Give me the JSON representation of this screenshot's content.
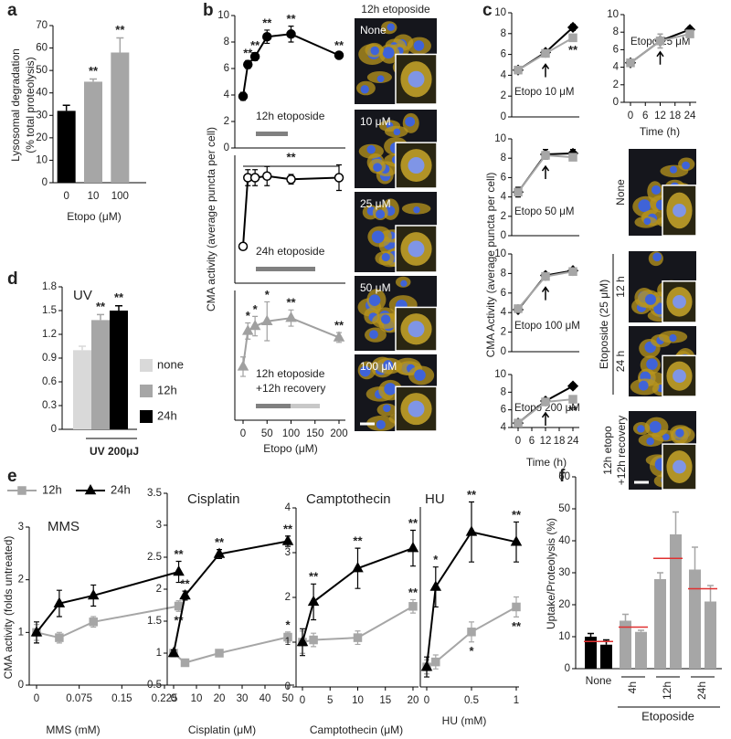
{
  "panel_labels": [
    "a",
    "b",
    "c",
    "d",
    "e",
    "f"
  ],
  "chart_data": [
    {
      "type": "bar",
      "ylabel": [
        "Lysosomal degradation",
        "(% total proteolysis)"
      ],
      "xlabel": "Etopo (μM)",
      "categories": [
        "0",
        "10",
        "100"
      ],
      "values": [
        32,
        45,
        58
      ],
      "errors": [
        2.5,
        1.2,
        6.5
      ],
      "colors": [
        "#000000",
        "#a6a6a6",
        "#a6a6a6"
      ],
      "significance": [
        null,
        "**",
        "**"
      ],
      "ylim": [
        0,
        70
      ],
      "yticks": [
        0,
        10,
        20,
        30,
        40,
        50,
        60,
        70
      ]
    },
    {
      "type": "line",
      "ylabel": "CMA activity (average puncta per cell)",
      "x": [
        0,
        10,
        25,
        50,
        100,
        200
      ],
      "xlim": [
        0,
        200
      ],
      "ylim": [
        0,
        10
      ],
      "yticks": [
        0,
        2,
        4,
        6,
        8,
        10
      ],
      "treatment": [
        "12h etoposide"
      ],
      "treatment_colors": [
        "#808080"
      ],
      "series": [
        {
          "color": "#000000",
          "fill": "#000000",
          "marker": "circle",
          "values": [
            3.9,
            6.3,
            6.9,
            8.4,
            8.6,
            7.0
          ],
          "errors": [
            0.3,
            0.3,
            0.3,
            0.5,
            0.6,
            0.2
          ],
          "significance": [
            null,
            "**",
            "**",
            "**",
            "**",
            "**"
          ]
        }
      ]
    },
    {
      "type": "line",
      "x": [
        0,
        10,
        25,
        50,
        100,
        200
      ],
      "xlim": [
        0,
        200
      ],
      "ylim": [
        2,
        10
      ],
      "treatment": [
        "24h etoposide"
      ],
      "treatment_colors": [
        "#808080"
      ],
      "bracket_label": "**",
      "series": [
        {
          "color": "#000000",
          "fill": "#ffffff",
          "marker": "circle",
          "values": [
            4.3,
            8.6,
            8.6,
            8.7,
            8.5,
            8.6
          ],
          "errors": [
            0.2,
            0.5,
            0.5,
            0.6,
            0.3,
            0.8
          ]
        }
      ]
    },
    {
      "type": "line",
      "xlabel": "Etopo (μM)",
      "x": [
        0,
        10,
        25,
        50,
        100,
        200
      ],
      "xlim": [
        0,
        200
      ],
      "xticks": [
        0,
        50,
        100,
        150,
        200
      ],
      "ylim": [
        2,
        10
      ],
      "treatment": [
        "12h etoposide",
        "+12h recovery"
      ],
      "treatment_colors": [
        "#808080",
        "#c8c8c8"
      ],
      "series": [
        {
          "color": "#a0a0a0",
          "fill": "#a0a0a0",
          "marker": "triangle",
          "values": [
            5.3,
            7.5,
            7.8,
            8.1,
            8.3,
            7.1
          ],
          "errors": [
            0.6,
            0.5,
            0.6,
            1.2,
            0.5,
            0.3
          ],
          "significance": [
            null,
            "*",
            "*",
            "*",
            "**",
            "**"
          ]
        }
      ]
    },
    {
      "type": "line",
      "ylabel": "CMA Activity (average puncta per cell)",
      "note": "Etopo 10 μM",
      "x": [
        0,
        12,
        24
      ],
      "xlim": [
        0,
        24
      ],
      "ylim": [
        0,
        10
      ],
      "yticks": [
        0,
        2,
        4,
        6,
        8,
        10
      ],
      "arrows": [
        12
      ],
      "series": [
        {
          "color": "#000000",
          "fill": "#000000",
          "marker": "diamond",
          "values": [
            4.5,
            6.2,
            8.6
          ],
          "errors": [
            0.3,
            0.2,
            0.3
          ]
        },
        {
          "color": "#a6a6a6",
          "fill": "#a6a6a6",
          "marker": "square",
          "values": [
            4.5,
            6.1,
            7.6
          ],
          "errors": [
            0.3,
            0.2,
            0.3
          ],
          "significance": [
            null,
            null,
            "**"
          ],
          "label_position": "below"
        }
      ]
    },
    {
      "type": "line",
      "note": "Etopo 25 μM",
      "xlabel": "Time (h)",
      "x": [
        0,
        12,
        24
      ],
      "xlim": [
        0,
        24
      ],
      "xticks": [
        0,
        6,
        12,
        18,
        24
      ],
      "ylim": [
        0,
        10
      ],
      "yticks": [
        0,
        2,
        4,
        6,
        8,
        10
      ],
      "arrows": [
        12
      ],
      "series": [
        {
          "color": "#000000",
          "fill": "#000000",
          "marker": "diamond",
          "values": [
            4.5,
            7.0,
            8.3
          ],
          "errors": [
            0.3,
            0.8,
            0.3
          ]
        },
        {
          "color": "#a6a6a6",
          "fill": "#a6a6a6",
          "marker": "square",
          "values": [
            4.5,
            7.0,
            7.8
          ],
          "errors": [
            0.3,
            0.8,
            0.3
          ]
        }
      ]
    },
    {
      "type": "line",
      "note": "Etopo 50 μM",
      "x": [
        0,
        12,
        24
      ],
      "xlim": [
        0,
        24
      ],
      "ylim": [
        0,
        10
      ],
      "yticks": [
        0,
        2,
        4,
        6,
        8,
        10
      ],
      "arrows": [
        12
      ],
      "series": [
        {
          "color": "#000000",
          "fill": "#000000",
          "marker": "diamond",
          "values": [
            4.5,
            8.4,
            8.5
          ],
          "errors": [
            0.5,
            0.5,
            0.4
          ]
        },
        {
          "color": "#a6a6a6",
          "fill": "#a6a6a6",
          "marker": "square",
          "values": [
            4.5,
            8.3,
            8.1
          ],
          "errors": [
            0.4,
            0.4,
            0.3
          ]
        }
      ]
    },
    {
      "type": "line",
      "note": "Etopo 100 μM",
      "x": [
        0,
        12,
        24
      ],
      "xlim": [
        0,
        24
      ],
      "ylim": [
        0,
        10
      ],
      "yticks": [
        0,
        2,
        4,
        6,
        8,
        10
      ],
      "arrows": [
        12
      ],
      "series": [
        {
          "color": "#000000",
          "fill": "#000000",
          "marker": "diamond",
          "values": [
            4.3,
            7.8,
            8.3
          ],
          "errors": [
            0.2,
            0.2,
            0.2
          ]
        },
        {
          "color": "#a6a6a6",
          "fill": "#a6a6a6",
          "marker": "square",
          "values": [
            4.4,
            7.7,
            8.2
          ],
          "errors": [
            0.2,
            0.2,
            0.2
          ]
        }
      ]
    },
    {
      "type": "line",
      "note": "Etopo 200 μM",
      "xlabel": "Time (h)",
      "x": [
        0,
        12,
        24
      ],
      "xlim": [
        0,
        24
      ],
      "xticks": [
        0,
        6,
        12,
        18,
        24
      ],
      "ylim": [
        4,
        10
      ],
      "yticks": [
        4,
        6,
        8,
        10
      ],
      "arrows": [
        12
      ],
      "series": [
        {
          "color": "#000000",
          "fill": "#000000",
          "marker": "diamond",
          "values": [
            4.5,
            7.0,
            8.7
          ],
          "errors": [
            0.2,
            0.2,
            0.3
          ]
        },
        {
          "color": "#a6a6a6",
          "fill": "#a6a6a6",
          "marker": "square",
          "values": [
            4.5,
            6.9,
            7.2
          ],
          "errors": [
            0.2,
            0.2,
            0.2
          ],
          "significance": [
            null,
            null,
            "**"
          ],
          "label_position": "below"
        }
      ]
    },
    {
      "type": "bar",
      "title": "UV",
      "xlabel": "UV 200μJ",
      "legend": "right",
      "categories": [
        "none",
        "12h",
        "24h"
      ],
      "values": [
        1.0,
        1.38,
        1.5
      ],
      "errors": [
        0.05,
        0.07,
        0.06
      ],
      "colors": [
        "#d9d9d9",
        "#a6a6a6",
        "#000000"
      ],
      "significance": [
        null,
        "**",
        "**"
      ],
      "ylim": [
        0,
        1.8
      ],
      "yticks": [
        0,
        0.3,
        0.6,
        0.9,
        1.2,
        1.5,
        1.8
      ]
    },
    {
      "type": "line",
      "title": "MMS",
      "xlabel": "MMS (mM)",
      "ylabel": "CMA activity (folds untreated)",
      "legend": "top",
      "x": [
        0,
        0.04,
        0.1,
        0.25
      ],
      "xlim": [
        0,
        0.27
      ],
      "xticks": [
        0,
        0.075,
        0.15,
        0.225
      ],
      "ylim": [
        0,
        3
      ],
      "yticks": [
        0,
        1,
        2,
        3
      ],
      "series": [
        {
          "name": "12h",
          "color": "#a6a6a6",
          "fill": "#a6a6a6",
          "marker": "square",
          "values": [
            1.0,
            0.9,
            1.2,
            1.5
          ],
          "errors": [
            0.15,
            0.1,
            0.1,
            0.1
          ],
          "significance": [
            null,
            null,
            null,
            "**"
          ],
          "label_position": "below"
        },
        {
          "name": "24h",
          "color": "#000000",
          "fill": "#000000",
          "marker": "triangle",
          "values": [
            1.0,
            1.55,
            1.7,
            2.15
          ],
          "errors": [
            0.2,
            0.25,
            0.2,
            0.2
          ],
          "significance": [
            null,
            null,
            null,
            "**"
          ]
        }
      ]
    },
    {
      "type": "line",
      "title": "Cisplatin",
      "xlabel": "Cisplatin (μM)",
      "x": [
        0,
        5,
        20,
        50
      ],
      "xlim": [
        0,
        52
      ],
      "xticks": [
        0,
        10,
        20,
        30,
        40,
        50
      ],
      "ylim": [
        0.5,
        3.5
      ],
      "yticks": [
        0.5,
        1,
        1.5,
        2,
        2.5,
        3,
        3.5
      ],
      "series": [
        {
          "color": "#a6a6a6",
          "fill": "#a6a6a6",
          "marker": "square",
          "values": [
            1.0,
            0.85,
            1.0,
            1.25
          ],
          "errors": [
            0.05,
            0.05,
            0.05,
            0.08
          ],
          "significance": [
            null,
            null,
            null,
            "*"
          ]
        },
        {
          "color": "#000000",
          "fill": "#000000",
          "marker": "triangle",
          "values": [
            1.0,
            1.9,
            2.55,
            2.75
          ],
          "errors": [
            0.05,
            0.07,
            0.07,
            0.08
          ],
          "significance": [
            null,
            "**",
            "**",
            "**"
          ]
        }
      ]
    },
    {
      "type": "line",
      "title": "Camptothecin",
      "xlabel": "Camptothecin (μM)",
      "x": [
        0,
        2,
        10,
        20
      ],
      "xlim": [
        0,
        20.5
      ],
      "xticks": [
        0,
        5,
        10,
        15,
        20
      ],
      "ylim": [
        0,
        4
      ],
      "yticks": [
        0,
        1,
        2,
        3,
        4
      ],
      "series": [
        {
          "color": "#a6a6a6",
          "fill": "#a6a6a6",
          "marker": "square",
          "values": [
            1.0,
            1.05,
            1.1,
            1.8
          ],
          "errors": [
            0.25,
            0.15,
            0.15,
            0.15
          ],
          "significance": [
            null,
            null,
            null,
            "**"
          ]
        },
        {
          "color": "#000000",
          "fill": "#000000",
          "marker": "triangle",
          "values": [
            1.0,
            1.9,
            2.65,
            3.1
          ],
          "errors": [
            0.3,
            0.4,
            0.45,
            0.4
          ],
          "significance": [
            null,
            "**",
            "**",
            "**"
          ]
        }
      ]
    },
    {
      "type": "line",
      "title": "HU",
      "xlabel": "HU (mM)",
      "x": [
        0,
        0.1,
        0.5,
        1
      ],
      "xlim": [
        0,
        1
      ],
      "xticks": [
        0,
        0.5,
        1
      ],
      "ylim": [
        0.8,
        2.6
      ],
      "series": [
        {
          "color": "#a6a6a6",
          "fill": "#a6a6a6",
          "marker": "square",
          "values": [
            1.0,
            1.05,
            1.35,
            1.6
          ],
          "errors": [
            0.07,
            0.07,
            0.1,
            0.1
          ],
          "significance": [
            null,
            null,
            "*",
            "**"
          ],
          "label_position": "below"
        },
        {
          "color": "#000000",
          "fill": "#000000",
          "marker": "triangle",
          "values": [
            1.0,
            1.8,
            2.35,
            2.25
          ],
          "errors": [
            0.1,
            0.2,
            0.3,
            0.2
          ],
          "significance": [
            null,
            "*",
            "**",
            "**"
          ]
        }
      ]
    },
    {
      "type": "grouped_bar",
      "ylabel": "Uptake/Proteolysis (%)",
      "group_label": "Etoposide",
      "categories": [
        "None",
        "4h",
        "12h",
        "24h"
      ],
      "colors": [
        "#000000",
        "#a6a6a6",
        "#a6a6a6",
        "#a6a6a6"
      ],
      "series": [
        {
          "values": [
            10,
            15,
            28,
            31
          ],
          "errors": [
            1,
            2,
            2,
            7
          ]
        },
        {
          "values": [
            7.5,
            11.5,
            42,
            21
          ],
          "errors": [
            1.5,
            0.5,
            7,
            5
          ]
        }
      ],
      "reference": [
        8.5,
        13,
        34.5,
        25
      ],
      "reference_color": "#e03030",
      "ylim": [
        0,
        60
      ],
      "yticks": [
        0,
        10,
        20,
        30,
        40,
        50,
        60
      ]
    }
  ],
  "micrographs": {
    "b": {
      "title": "12h etoposide",
      "labels": [
        "None",
        "10 μM",
        "25 μM",
        "50 μM",
        "100 μM"
      ]
    },
    "c": {
      "labels": [
        "None",
        "12 h",
        "24 h"
      ],
      "group_label": "Etoposide (25 μM)",
      "recovery_label": [
        "12h etopo",
        "+12h recovery"
      ]
    }
  }
}
